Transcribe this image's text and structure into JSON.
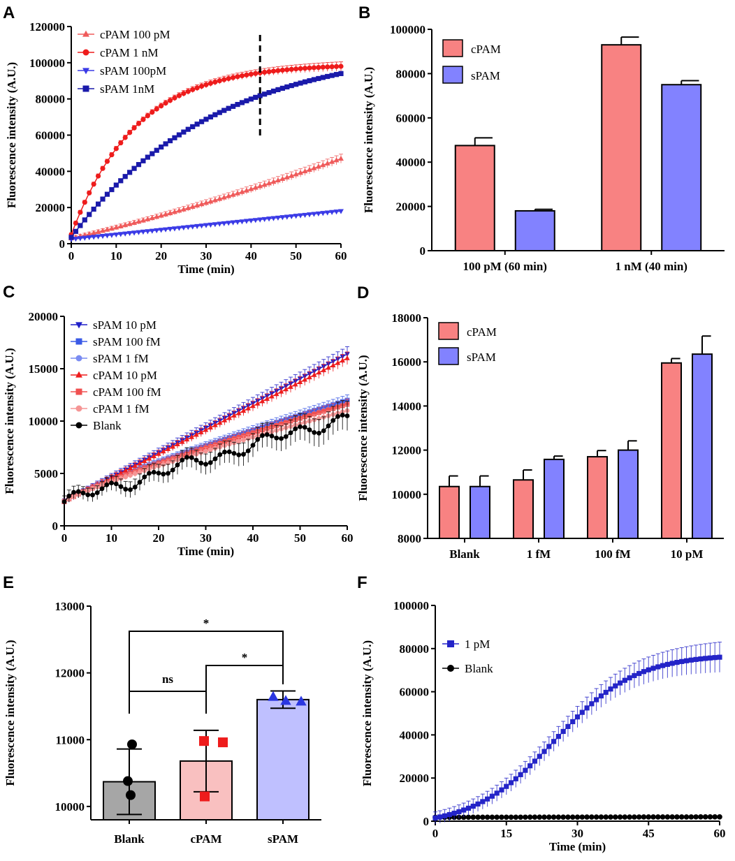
{
  "colors": {
    "c100p": "#ef5b5b",
    "c1n": "#ee1c1c",
    "s100p": "#3a3ae6",
    "s1n": "#1a1aaa",
    "barRed": "#f88282",
    "barBlue": "#8282ff",
    "s10p": "#1e1ec8",
    "s100f": "#3a5ae6",
    "s1f": "#7a8cf2",
    "c10p": "#ee1c1c",
    "c100f": "#f05050",
    "c1f": "#f59595",
    "blank": "#000000",
    "ebar": "#8a8a8a",
    "eBlankFill": "#a6a6a6",
    "eCpamFill": "#f9c0c0",
    "eSpamFill": "#bfc0ff",
    "eCpamMark": "#ee1c1c",
    "eSpamMark": "#2a36e0",
    "f1p": "#2424c8"
  },
  "chart_data": [
    {
      "panel": "A",
      "type": "line",
      "xlabel": "Time (min)",
      "ylabel": "Fluorescence intensity (A.U.)",
      "xlim": [
        0,
        60
      ],
      "ylim": [
        0,
        120000
      ],
      "xticks": [
        "0",
        "10",
        "20",
        "30",
        "40",
        "50",
        "60"
      ],
      "yticks": [
        "0",
        "20000",
        "40000",
        "60000",
        "80000",
        "100000",
        "120000"
      ],
      "vline_x": 42,
      "series": [
        {
          "name": "cPAM 100 pM",
          "marker": "triangle-up",
          "color": "c100p",
          "start": 3000,
          "end": 47000,
          "shape": "slowcurve",
          "err": 2500
        },
        {
          "name": "cPAM 1 nM",
          "marker": "circle",
          "color": "c1n",
          "start": 5000,
          "end": 98000,
          "shape": "fastsat",
          "err": 2500
        },
        {
          "name": "sPAM 100pM",
          "marker": "triangle-down",
          "color": "s100p",
          "start": 2500,
          "end": 18000,
          "shape": "linear",
          "err": 600
        },
        {
          "name": "sPAM 1nM",
          "marker": "square",
          "color": "s1n",
          "start": 3500,
          "end": 94000,
          "shape": "medium",
          "err": 1200
        }
      ]
    },
    {
      "panel": "B",
      "type": "bar",
      "ylabel": "Fluorescence intensity (A.U.)",
      "ylim": [
        0,
        100000
      ],
      "yticks": [
        "0",
        "20000",
        "40000",
        "60000",
        "80000",
        "100000"
      ],
      "categories": [
        "100 pM (60 min)",
        "1 nM (40 min)"
      ],
      "series": [
        {
          "name": "cPAM",
          "color": "barRed",
          "values": [
            47500,
            93000
          ],
          "errors": [
            3500,
            3500
          ]
        },
        {
          "name": "sPAM",
          "color": "barBlue",
          "values": [
            18000,
            75000
          ],
          "errors": [
            700,
            1800
          ]
        }
      ]
    },
    {
      "panel": "C",
      "type": "line",
      "xlabel": "Time (min)",
      "ylabel": "Fluorescence intensity (A.U.)",
      "xlim": [
        0,
        60
      ],
      "ylim": [
        0,
        20000
      ],
      "xticks": [
        "0",
        "10",
        "20",
        "30",
        "40",
        "50",
        "60"
      ],
      "yticks": [
        "0",
        "5000",
        "10000",
        "15000",
        "20000"
      ],
      "series": [
        {
          "name": "sPAM 10 pM",
          "marker": "triangle-down",
          "color": "s10p",
          "start": 2300,
          "end": 16400,
          "err": 700
        },
        {
          "name": "sPAM 100 fM",
          "marker": "square",
          "color": "s100f",
          "start": 2300,
          "end": 12000,
          "err": 500
        },
        {
          "name": "sPAM 1 fM",
          "marker": "circle",
          "color": "s1f",
          "start": 2300,
          "end": 11700,
          "err": 500
        },
        {
          "name": "cPAM 10 pM",
          "marker": "triangle-up",
          "color": "c10p",
          "start": 2300,
          "end": 16000,
          "err": 600
        },
        {
          "name": "cPAM 100 fM",
          "marker": "square",
          "color": "c100f",
          "start": 2300,
          "end": 11600,
          "err": 500
        },
        {
          "name": "cPAM 1 fM",
          "marker": "circle",
          "color": "c1f",
          "start": 2300,
          "end": 11000,
          "err": 500
        },
        {
          "name": "Blank",
          "marker": "circle",
          "color": "blank",
          "start": 2300,
          "end": 10400,
          "err": 1400
        }
      ]
    },
    {
      "panel": "D",
      "type": "bar",
      "ylabel": "Fluorescence intensity (A.U.)",
      "ylim": [
        8000,
        18000
      ],
      "yticks": [
        "8000",
        "10000",
        "12000",
        "14000",
        "16000",
        "18000"
      ],
      "categories": [
        "Blank",
        "1 fM",
        "100 fM",
        "10 pM"
      ],
      "series": [
        {
          "name": "cPAM",
          "color": "barRed",
          "values": [
            10350,
            10650,
            11700,
            15950
          ],
          "errors": [
            480,
            450,
            280,
            200
          ]
        },
        {
          "name": "sPAM",
          "color": "barBlue",
          "values": [
            10350,
            11580,
            12000,
            16350
          ],
          "errors": [
            480,
            150,
            420,
            820
          ]
        }
      ]
    },
    {
      "panel": "E",
      "type": "bar",
      "ylabel": "Fluorescence intensity (A.U.)",
      "ylim": [
        9800,
        13000
      ],
      "yticks": [
        "10000",
        "11000",
        "12000",
        "13000"
      ],
      "categories": [
        "Blank",
        "cPAM",
        "sPAM"
      ],
      "values": [
        10370,
        10680,
        11600
      ],
      "errors": [
        490,
        460,
        130
      ],
      "points": [
        [
          10930,
          10380,
          10170
        ],
        [
          10980,
          10960,
          10150
        ],
        [
          11640,
          11570,
          11580
        ]
      ],
      "significance": [
        {
          "label": "ns",
          "from": "Blank",
          "to": "cPAM"
        },
        {
          "label": "*",
          "from": "cPAM",
          "to": "sPAM"
        },
        {
          "label": "*",
          "from": "Blank",
          "to": "sPAM"
        }
      ]
    },
    {
      "panel": "F",
      "type": "line",
      "xlabel": "Time (min)",
      "ylabel": "Fluorescence intensity (A.U.)",
      "xlim": [
        0,
        60
      ],
      "ylim": [
        0,
        100000
      ],
      "xticks": [
        "0",
        "15",
        "30",
        "45",
        "60"
      ],
      "yticks": [
        "0",
        "20000",
        "40000",
        "60000",
        "80000",
        "100000"
      ],
      "series": [
        {
          "name": "1 pM",
          "marker": "square",
          "color": "f1p",
          "start": 1500,
          "end": 76000,
          "err": 7000
        },
        {
          "name": "Blank",
          "marker": "circle",
          "color": "blank",
          "start": 1800,
          "end": 2000,
          "err": 0
        }
      ]
    }
  ]
}
